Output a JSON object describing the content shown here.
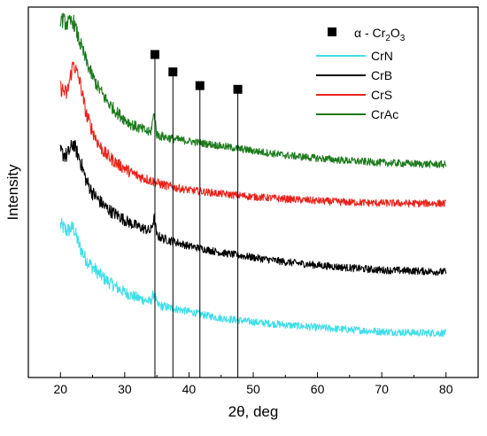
{
  "chart_data": {
    "type": "line",
    "title": "",
    "xlabel": "2θ, deg",
    "ylabel": "Intensity",
    "xlim": [
      15,
      85
    ],
    "ylim": [
      0,
      1
    ],
    "x_ticks": [
      20,
      30,
      40,
      50,
      60,
      70,
      80
    ],
    "y_ticks_shown": false,
    "grid": false,
    "legend_position": "top-right",
    "marker_legend": {
      "symbol": "square",
      "label": "α - Cr",
      "sub": "2",
      "mid": "O",
      "sub2": "3"
    },
    "marker_peaks": [
      {
        "x": 34.7,
        "y": 0.872
      },
      {
        "x": 37.5,
        "y": 0.825
      },
      {
        "x": 41.7,
        "y": 0.788
      },
      {
        "x": 47.6,
        "y": 0.778
      }
    ],
    "series": [
      {
        "name": "CrN",
        "color": "#3fdfe8",
        "points": [
          [
            20,
            0.412
          ],
          [
            21,
            0.395
          ],
          [
            22,
            0.405
          ],
          [
            23,
            0.352
          ],
          [
            24,
            0.318
          ],
          [
            25,
            0.298
          ],
          [
            26,
            0.28
          ],
          [
            27,
            0.265
          ],
          [
            28,
            0.252
          ],
          [
            29,
            0.24
          ],
          [
            30,
            0.23
          ],
          [
            31,
            0.222
          ],
          [
            32,
            0.215
          ],
          [
            33,
            0.21
          ],
          [
            34,
            0.204
          ],
          [
            34.6,
            0.23
          ],
          [
            35,
            0.196
          ],
          [
            36,
            0.192
          ],
          [
            38,
            0.185
          ],
          [
            40,
            0.178
          ],
          [
            42,
            0.17
          ],
          [
            45,
            0.16
          ],
          [
            50,
            0.15
          ],
          [
            55,
            0.142
          ],
          [
            60,
            0.135
          ],
          [
            65,
            0.129
          ],
          [
            70,
            0.124
          ],
          [
            75,
            0.121
          ],
          [
            80,
            0.12
          ]
        ]
      },
      {
        "name": "CrB",
        "color": "#000000",
        "points": [
          [
            20,
            0.608
          ],
          [
            21,
            0.598
          ],
          [
            22,
            0.632
          ],
          [
            23,
            0.59
          ],
          [
            24,
            0.532
          ],
          [
            25,
            0.498
          ],
          [
            26,
            0.478
          ],
          [
            27,
            0.46
          ],
          [
            28,
            0.447
          ],
          [
            29,
            0.437
          ],
          [
            30,
            0.425
          ],
          [
            31,
            0.416
          ],
          [
            32,
            0.408
          ],
          [
            33,
            0.402
          ],
          [
            34,
            0.395
          ],
          [
            34.6,
            0.43
          ],
          [
            35,
            0.383
          ],
          [
            36,
            0.375
          ],
          [
            38,
            0.365
          ],
          [
            40,
            0.355
          ],
          [
            42,
            0.348
          ],
          [
            45,
            0.337
          ],
          [
            50,
            0.324
          ],
          [
            55,
            0.312
          ],
          [
            60,
            0.303
          ],
          [
            65,
            0.296
          ],
          [
            70,
            0.29
          ],
          [
            75,
            0.288
          ],
          [
            80,
            0.285
          ]
        ]
      },
      {
        "name": "CrS",
        "color": "#e8231a",
        "points": [
          [
            20,
            0.782
          ],
          [
            21,
            0.765
          ],
          [
            22,
            0.85
          ],
          [
            23,
            0.8
          ],
          [
            24,
            0.712
          ],
          [
            25,
            0.665
          ],
          [
            26,
            0.628
          ],
          [
            27,
            0.604
          ],
          [
            28,
            0.589
          ],
          [
            29,
            0.575
          ],
          [
            30,
            0.565
          ],
          [
            31,
            0.553
          ],
          [
            32,
            0.545
          ],
          [
            33,
            0.538
          ],
          [
            34,
            0.532
          ],
          [
            35,
            0.525
          ],
          [
            36,
            0.52
          ],
          [
            38,
            0.512
          ],
          [
            40,
            0.506
          ],
          [
            42,
            0.502
          ],
          [
            45,
            0.496
          ],
          [
            50,
            0.488
          ],
          [
            55,
            0.482
          ],
          [
            60,
            0.477
          ],
          [
            65,
            0.473
          ],
          [
            70,
            0.471
          ],
          [
            75,
            0.47
          ],
          [
            80,
            0.47
          ]
        ]
      },
      {
        "name": "CrAc",
        "color": "#1d7a1d",
        "points": [
          [
            20,
            0.97
          ],
          [
            21,
            0.955
          ],
          [
            22,
            0.962
          ],
          [
            23,
            0.905
          ],
          [
            24,
            0.855
          ],
          [
            25,
            0.812
          ],
          [
            26,
            0.78
          ],
          [
            27,
            0.752
          ],
          [
            28,
            0.73
          ],
          [
            29,
            0.712
          ],
          [
            30,
            0.697
          ],
          [
            31,
            0.684
          ],
          [
            32,
            0.675
          ],
          [
            33,
            0.668
          ],
          [
            34,
            0.66
          ],
          [
            34.6,
            0.715
          ],
          [
            35,
            0.655
          ],
          [
            36,
            0.65
          ],
          [
            38,
            0.643
          ],
          [
            40,
            0.638
          ],
          [
            42,
            0.633
          ],
          [
            45,
            0.625
          ],
          [
            50,
            0.612
          ],
          [
            55,
            0.6
          ],
          [
            60,
            0.592
          ],
          [
            65,
            0.585
          ],
          [
            70,
            0.58
          ],
          [
            75,
            0.577
          ],
          [
            80,
            0.575
          ]
        ]
      }
    ]
  }
}
